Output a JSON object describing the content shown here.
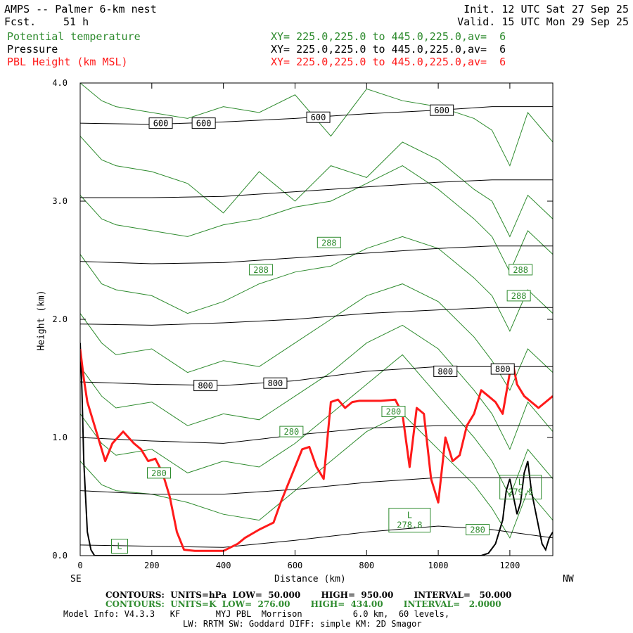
{
  "header": {
    "title": "AMPS -- Palmer 6-km nest",
    "fcst_label": "Fcst.",
    "fcst_value": "51 h",
    "init": "Init. 12 UTC Sat 27 Sep 25",
    "valid": "Valid. 15 UTC Mon 29 Sep 25"
  },
  "fields": [
    {
      "name": "Potential temperature",
      "xy": "XY= 225.0,225.0 to 445.0,225.0,av=  6",
      "color": "#2e8b2e"
    },
    {
      "name": "Pressure",
      "xy": "XY= 225.0,225.0 to 445.0,225.0,av=  6",
      "color": "#000000"
    },
    {
      "name": "PBL Height (km MSL)",
      "xy": "XY= 225.0,225.0 to 445.0,225.0,av=  6",
      "color": "#ff1a1a"
    }
  ],
  "footer": {
    "contours1": "CONTOURS:  UNITS=hPa  LOW=  50.000       HIGH=  950.00       INTERVAL=   50.000",
    "contours2": "CONTOURS:  UNITS=K  LOW=  276.00       HIGH=  434.00       INTERVAL=   2.0000",
    "model1": "Model Info: V4.3.3   KF       MYJ PBL  Morrison          6.0 km,  60 levels,",
    "model2": "LW: RRTM SW: Goddard DIFF: simple KM: 2D Smagor"
  },
  "chart_data": {
    "type": "line",
    "xlabel": "Distance (km)",
    "ylabel": "Height (km)",
    "xlim": [
      0,
      1320
    ],
    "ylim": [
      0,
      4.0
    ],
    "x_ticks": [
      "0",
      "200",
      "400",
      "600",
      "800",
      "1000",
      "1200"
    ],
    "y_ticks": [
      "0.0",
      "1.0",
      "2.0",
      "3.0",
      "4.0"
    ],
    "left_end_label": "SE",
    "right_end_label": "NW",
    "grid": false,
    "pressure_contours": {
      "color": "#000000",
      "lines": [
        {
          "x": [
            0,
            200,
            400,
            600,
            800,
            1000,
            1150,
            1320
          ],
          "y": [
            0.09,
            0.08,
            0.07,
            0.13,
            0.2,
            0.25,
            0.22,
            0.15
          ]
        },
        {
          "x": [
            0,
            200,
            400,
            600,
            800,
            1000,
            1150,
            1320
          ],
          "y": [
            0.55,
            0.52,
            0.52,
            0.56,
            0.62,
            0.66,
            0.66,
            0.66
          ]
        },
        {
          "x": [
            0,
            200,
            400,
            600,
            800,
            1000,
            1150,
            1320
          ],
          "y": [
            1.0,
            0.97,
            0.95,
            1.02,
            1.08,
            1.1,
            1.1,
            1.1
          ]
        },
        {
          "x": [
            0,
            200,
            400,
            600,
            800,
            1000,
            1150,
            1320
          ],
          "y": [
            1.47,
            1.45,
            1.44,
            1.48,
            1.56,
            1.6,
            1.6,
            1.6
          ]
        },
        {
          "x": [
            0,
            200,
            400,
            600,
            800,
            1000,
            1150,
            1320
          ],
          "y": [
            1.96,
            1.95,
            1.97,
            2.0,
            2.05,
            2.08,
            2.1,
            2.1
          ]
        },
        {
          "x": [
            0,
            200,
            400,
            600,
            800,
            1000,
            1150,
            1320
          ],
          "y": [
            2.49,
            2.47,
            2.48,
            2.52,
            2.56,
            2.6,
            2.62,
            2.62
          ]
        },
        {
          "x": [
            0,
            200,
            400,
            600,
            800,
            1000,
            1150,
            1320
          ],
          "y": [
            3.03,
            3.03,
            3.04,
            3.08,
            3.12,
            3.16,
            3.18,
            3.18
          ]
        },
        {
          "x": [
            0,
            200,
            400,
            600,
            800,
            1000,
            1150,
            1320
          ],
          "y": [
            3.66,
            3.65,
            3.67,
            3.7,
            3.74,
            3.77,
            3.8,
            3.8
          ]
        }
      ],
      "labels": [
        {
          "text": "600",
          "x": 225,
          "y": 3.66
        },
        {
          "text": "600",
          "x": 345,
          "y": 3.66
        },
        {
          "text": "600",
          "x": 665,
          "y": 3.71
        },
        {
          "text": "600",
          "x": 1010,
          "y": 3.77
        },
        {
          "text": "800",
          "x": 350,
          "y": 1.44
        },
        {
          "text": "800",
          "x": 545,
          "y": 1.46
        },
        {
          "text": "800",
          "x": 1020,
          "y": 1.56
        },
        {
          "text": "800",
          "x": 1180,
          "y": 1.58
        }
      ]
    },
    "theta_contours": {
      "color": "#2e8b2e",
      "lines": [
        {
          "x": [
            0,
            60,
            100,
            200,
            300,
            400,
            500,
            600,
            700,
            800,
            900,
            1000,
            1100,
            1150,
            1200,
            1250,
            1320
          ],
          "y": [
            0.8,
            0.6,
            0.55,
            0.52,
            0.45,
            0.35,
            0.3,
            0.55,
            0.8,
            1.05,
            1.2,
            0.9,
            0.6,
            0.4,
            0.15,
            0.55,
            0.3
          ]
        },
        {
          "x": [
            0,
            60,
            100,
            200,
            300,
            400,
            500,
            600,
            700,
            800,
            900,
            1000,
            1100,
            1150,
            1200,
            1250,
            1320
          ],
          "y": [
            1.2,
            0.95,
            0.85,
            0.9,
            0.7,
            0.8,
            0.75,
            0.95,
            1.2,
            1.45,
            1.7,
            1.35,
            1.0,
            0.8,
            0.5,
            0.9,
            0.65
          ]
        },
        {
          "x": [
            0,
            60,
            100,
            200,
            300,
            400,
            500,
            600,
            700,
            800,
            900,
            1000,
            1100,
            1150,
            1200,
            1250,
            1320
          ],
          "y": [
            1.6,
            1.35,
            1.25,
            1.3,
            1.1,
            1.2,
            1.15,
            1.35,
            1.55,
            1.8,
            1.95,
            1.75,
            1.4,
            1.2,
            0.9,
            1.3,
            1.05
          ]
        },
        {
          "x": [
            0,
            60,
            100,
            200,
            300,
            400,
            500,
            600,
            700,
            800,
            900,
            1000,
            1100,
            1150,
            1200,
            1250,
            1320
          ],
          "y": [
            2.05,
            1.8,
            1.7,
            1.75,
            1.55,
            1.65,
            1.6,
            1.8,
            2.0,
            2.2,
            2.3,
            2.15,
            1.85,
            1.65,
            1.4,
            1.75,
            1.55
          ]
        },
        {
          "x": [
            0,
            60,
            100,
            200,
            300,
            400,
            500,
            600,
            700,
            800,
            900,
            1000,
            1100,
            1150,
            1200,
            1250,
            1320
          ],
          "y": [
            2.55,
            2.3,
            2.25,
            2.2,
            2.05,
            2.15,
            2.3,
            2.4,
            2.45,
            2.6,
            2.7,
            2.6,
            2.35,
            2.2,
            1.9,
            2.25,
            2.05
          ]
        },
        {
          "x": [
            0,
            60,
            100,
            200,
            300,
            400,
            500,
            600,
            700,
            800,
            900,
            1000,
            1100,
            1150,
            1200,
            1250,
            1320
          ],
          "y": [
            3.05,
            2.85,
            2.8,
            2.75,
            2.7,
            2.8,
            2.85,
            2.95,
            3.0,
            3.15,
            3.3,
            3.1,
            2.85,
            2.7,
            2.4,
            2.75,
            2.55
          ]
        },
        {
          "x": [
            0,
            60,
            100,
            200,
            300,
            400,
            500,
            600,
            700,
            800,
            900,
            1000,
            1100,
            1150,
            1200,
            1250,
            1320
          ],
          "y": [
            3.55,
            3.35,
            3.3,
            3.25,
            3.15,
            2.9,
            3.25,
            3.0,
            3.3,
            3.2,
            3.5,
            3.35,
            3.1,
            3.0,
            2.7,
            3.05,
            2.85
          ]
        },
        {
          "x": [
            0,
            60,
            100,
            200,
            300,
            400,
            500,
            600,
            700,
            800,
            900,
            1000,
            1100,
            1150,
            1200,
            1250,
            1320
          ],
          "y": [
            4.0,
            3.85,
            3.8,
            3.75,
            3.7,
            3.8,
            3.75,
            3.9,
            3.55,
            3.95,
            3.85,
            3.8,
            3.7,
            3.6,
            3.3,
            3.75,
            3.5
          ]
        }
      ],
      "labels": [
        {
          "text": "280",
          "x": 220,
          "y": 0.7
        },
        {
          "text": "280",
          "x": 590,
          "y": 1.05
        },
        {
          "text": "280",
          "x": 875,
          "y": 1.22
        },
        {
          "text": "280",
          "x": 1110,
          "y": 0.22
        },
        {
          "text": "288",
          "x": 505,
          "y": 2.42
        },
        {
          "text": "288",
          "x": 695,
          "y": 2.65
        },
        {
          "text": "288",
          "x": 1230,
          "y": 2.42
        },
        {
          "text": "288",
          "x": 1225,
          "y": 2.2
        }
      ],
      "extrema": [
        {
          "text": "L\n278.8",
          "x": 920,
          "y": 0.3
        },
        {
          "text": "L\n279.5",
          "x": 1230,
          "y": 0.58
        },
        {
          "text": "L",
          "x": 110,
          "y": 0.08
        }
      ]
    },
    "terrain": {
      "color": "#000000",
      "x": [
        0,
        5,
        10,
        20,
        30,
        40,
        60,
        100,
        1120,
        1140,
        1160,
        1180,
        1190,
        1200,
        1210,
        1220,
        1230,
        1240,
        1250,
        1260,
        1270,
        1280,
        1290,
        1300,
        1310,
        1320
      ],
      "y": [
        1.8,
        1.4,
        0.8,
        0.2,
        0.05,
        0.0,
        0.0,
        0.0,
        0.0,
        0.02,
        0.1,
        0.3,
        0.55,
        0.65,
        0.5,
        0.35,
        0.45,
        0.7,
        0.8,
        0.55,
        0.4,
        0.25,
        0.1,
        0.05,
        0.15,
        0.2
      ]
    },
    "pbl_height": {
      "name": "PBL Height (km MSL)",
      "color": "#ff1a1a",
      "x": [
        0,
        10,
        20,
        40,
        70,
        90,
        120,
        150,
        170,
        190,
        210,
        230,
        250,
        270,
        290,
        320,
        360,
        400,
        440,
        460,
        500,
        540,
        560,
        580,
        600,
        620,
        640,
        660,
        680,
        700,
        720,
        740,
        760,
        780,
        800,
        840,
        880,
        900,
        920,
        940,
        960,
        980,
        1000,
        1020,
        1040,
        1060,
        1080,
        1100,
        1120,
        1140,
        1160,
        1180,
        1200,
        1210,
        1220,
        1240,
        1260,
        1280,
        1300,
        1320
      ],
      "y": [
        1.75,
        1.5,
        1.3,
        1.1,
        0.8,
        0.95,
        1.05,
        0.95,
        0.9,
        0.8,
        0.82,
        0.7,
        0.5,
        0.2,
        0.05,
        0.04,
        0.04,
        0.04,
        0.1,
        0.15,
        0.22,
        0.28,
        0.45,
        0.6,
        0.75,
        0.9,
        0.92,
        0.75,
        0.65,
        1.3,
        1.32,
        1.25,
        1.3,
        1.31,
        1.31,
        1.31,
        1.32,
        1.2,
        0.75,
        1.25,
        1.2,
        0.65,
        0.45,
        1.0,
        0.8,
        0.85,
        1.1,
        1.2,
        1.4,
        1.35,
        1.3,
        1.2,
        1.55,
        1.6,
        1.45,
        1.35,
        1.3,
        1.25,
        1.3,
        1.35
      ]
    }
  }
}
